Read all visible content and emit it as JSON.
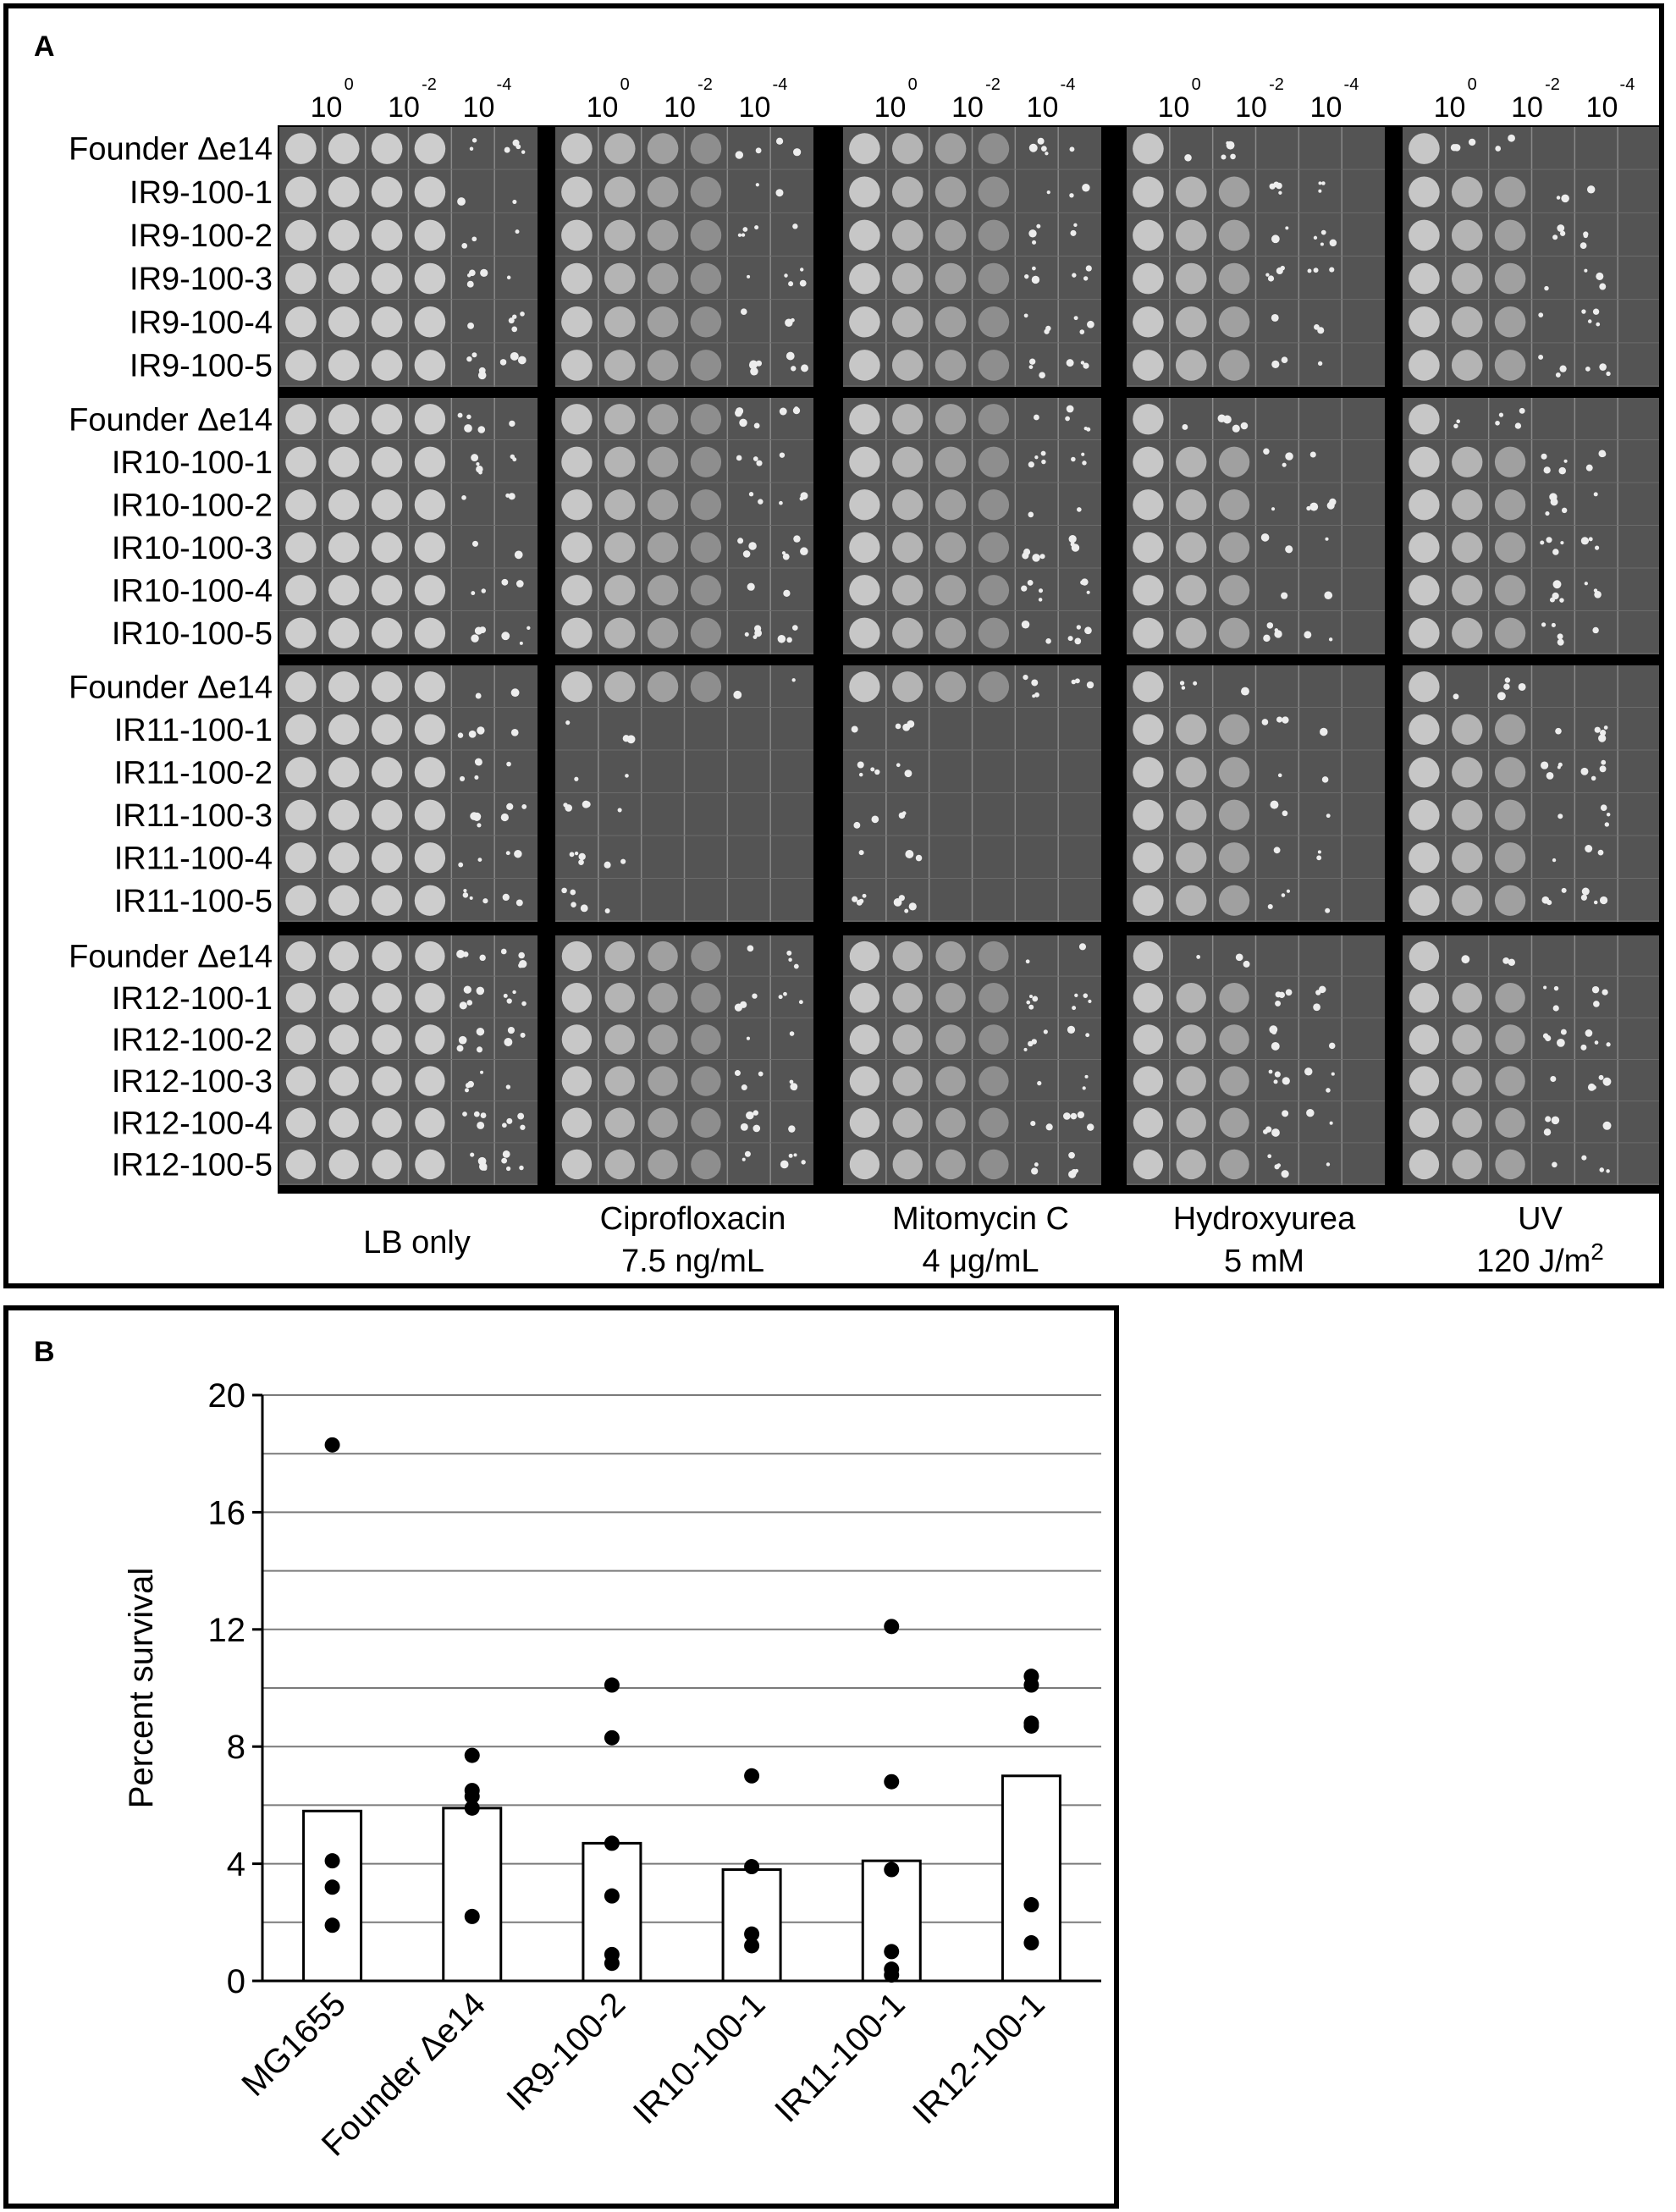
{
  "panelA": {
    "letter": "A",
    "dilution_labels": [
      {
        "base": "10",
        "exp": "0"
      },
      {
        "base": "10",
        "exp": "-2"
      },
      {
        "base": "10",
        "exp": "-4"
      }
    ],
    "groups": [
      {
        "rows": [
          "Founder Δe14",
          "IR9-100-1",
          "IR9-100-2",
          "IR9-100-3",
          "IR9-100-4",
          "IR9-100-5"
        ]
      },
      {
        "rows": [
          "Founder Δe14",
          "IR10-100-1",
          "IR10-100-2",
          "IR10-100-3",
          "IR10-100-4",
          "IR10-100-5"
        ]
      },
      {
        "rows": [
          "Founder Δe14",
          "IR11-100-1",
          "IR11-100-2",
          "IR11-100-3",
          "IR11-100-4",
          "IR11-100-5"
        ]
      },
      {
        "rows": [
          "Founder Δe14",
          "IR12-100-1",
          "IR12-100-2",
          "IR12-100-3",
          "IR12-100-4",
          "IR12-100-5"
        ]
      }
    ],
    "conditions": [
      {
        "line1": "LB only",
        "line2": ""
      },
      {
        "line1": "Ciprofloxacin",
        "line2": "7.5 ng/mL"
      },
      {
        "line1": "Mitomycin C",
        "line2": "4 μg/mL"
      },
      {
        "line1": "Hydroxyurea",
        "line2": "5 mM"
      },
      {
        "line1": "UV",
        "line2": "120 J/m",
        "line2_sup": "2"
      }
    ],
    "colors": {
      "plate": "#545454",
      "spot": "#d4d4d4",
      "background": "#000000"
    }
  },
  "panelB": {
    "letter": "B"
  },
  "chart_data": {
    "type": "bar",
    "title": "",
    "xlabel": "",
    "ylabel": "Percent survival",
    "ylim": [
      0,
      20
    ],
    "yticks": [
      0,
      4,
      8,
      12,
      16,
      20
    ],
    "grid_step": 2,
    "grid": true,
    "categories": [
      "MG1655",
      "Founder Δe14",
      "IR9-100-2",
      "IR10-100-1",
      "IR11-100-1",
      "IR12-100-1"
    ],
    "values": [
      5.8,
      5.9,
      4.7,
      3.8,
      4.1,
      7.0
    ],
    "points": [
      [
        18.3,
        4.1,
        3.2,
        1.9
      ],
      [
        7.7,
        6.5,
        6.3,
        5.9,
        2.2
      ],
      [
        10.1,
        8.3,
        4.7,
        2.9,
        0.9,
        0.6
      ],
      [
        7.0,
        3.9,
        1.6,
        1.2
      ],
      [
        12.1,
        6.8,
        3.8,
        1.0,
        0.4,
        0.2
      ],
      [
        10.4,
        10.1,
        8.8,
        8.7,
        2.6,
        1.3
      ]
    ],
    "colors": {
      "bar_fill": "#ffffff",
      "bar_stroke": "#000000",
      "point": "#000000",
      "grid": "#7a7a7a"
    }
  }
}
